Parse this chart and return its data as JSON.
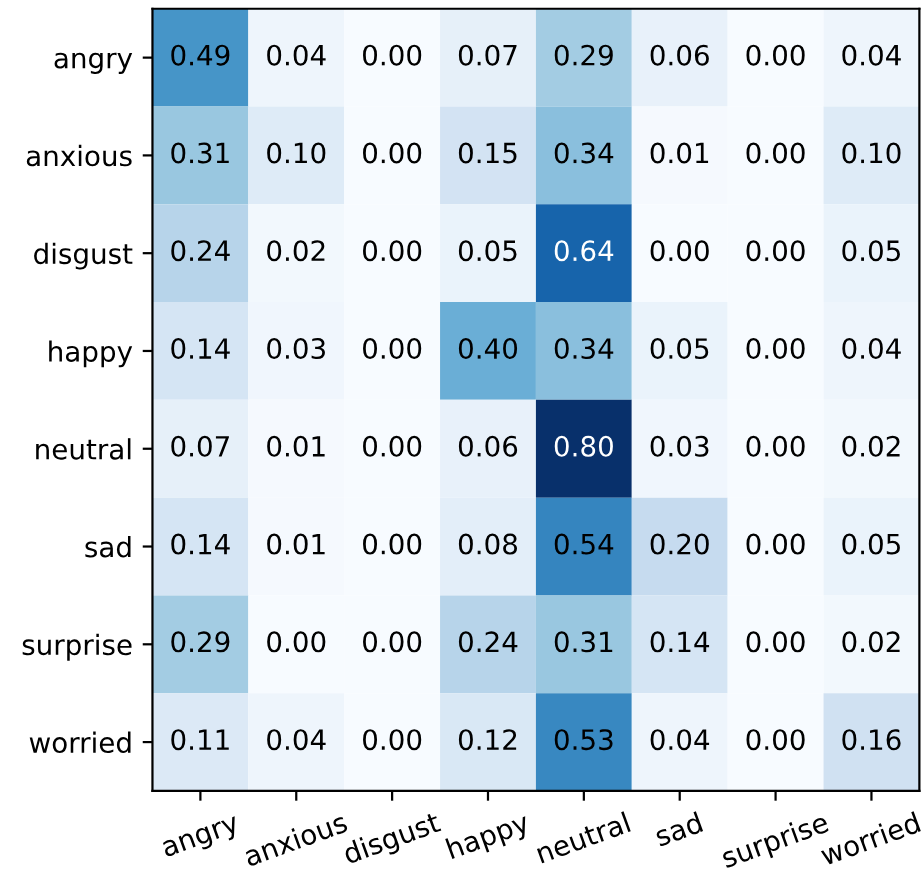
{
  "chart_data": {
    "type": "heatmap",
    "categories": [
      "angry",
      "anxious",
      "disgust",
      "happy",
      "neutral",
      "sad",
      "surprise",
      "worried"
    ],
    "y_categories": [
      "angry",
      "anxious",
      "disgust",
      "happy",
      "neutral",
      "sad",
      "surprise",
      "worried"
    ],
    "cells": [
      [
        0.49,
        0.04,
        0.0,
        0.07,
        0.29,
        0.06,
        0.0,
        0.04
      ],
      [
        0.31,
        0.1,
        0.0,
        0.15,
        0.34,
        0.01,
        0.0,
        0.1
      ],
      [
        0.24,
        0.02,
        0.0,
        0.05,
        0.64,
        0.0,
        0.0,
        0.05
      ],
      [
        0.14,
        0.03,
        0.0,
        0.4,
        0.34,
        0.05,
        0.0,
        0.04
      ],
      [
        0.07,
        0.01,
        0.0,
        0.06,
        0.8,
        0.03,
        0.0,
        0.02
      ],
      [
        0.14,
        0.01,
        0.0,
        0.08,
        0.54,
        0.2,
        0.0,
        0.05
      ],
      [
        0.29,
        0.0,
        0.0,
        0.24,
        0.31,
        0.14,
        0.0,
        0.02
      ],
      [
        0.11,
        0.04,
        0.0,
        0.12,
        0.53,
        0.04,
        0.0,
        0.16
      ]
    ],
    "cell_labels": [
      [
        "0.49",
        "0.04",
        "0.00",
        "0.07",
        "0.29",
        "0.06",
        "0.00",
        "0.04"
      ],
      [
        "0.31",
        "0.10",
        "0.00",
        "0.15",
        "0.34",
        "0.01",
        "0.00",
        "0.10"
      ],
      [
        "0.24",
        "0.02",
        "0.00",
        "0.05",
        "0.64",
        "0.00",
        "0.00",
        "0.05"
      ],
      [
        "0.14",
        "0.03",
        "0.00",
        "0.40",
        "0.34",
        "0.05",
        "0.00",
        "0.04"
      ],
      [
        "0.07",
        "0.01",
        "0.00",
        "0.06",
        "0.80",
        "0.03",
        "0.00",
        "0.02"
      ],
      [
        "0.14",
        "0.01",
        "0.00",
        "0.08",
        "0.54",
        "0.20",
        "0.00",
        "0.05"
      ],
      [
        "0.29",
        "0.00",
        "0.00",
        "0.24",
        "0.31",
        "0.14",
        "0.00",
        "0.02"
      ],
      [
        "0.11",
        "0.04",
        "0.00",
        "0.12",
        "0.53",
        "0.04",
        "0.00",
        "0.16"
      ]
    ],
    "data_labels": true
  }
}
